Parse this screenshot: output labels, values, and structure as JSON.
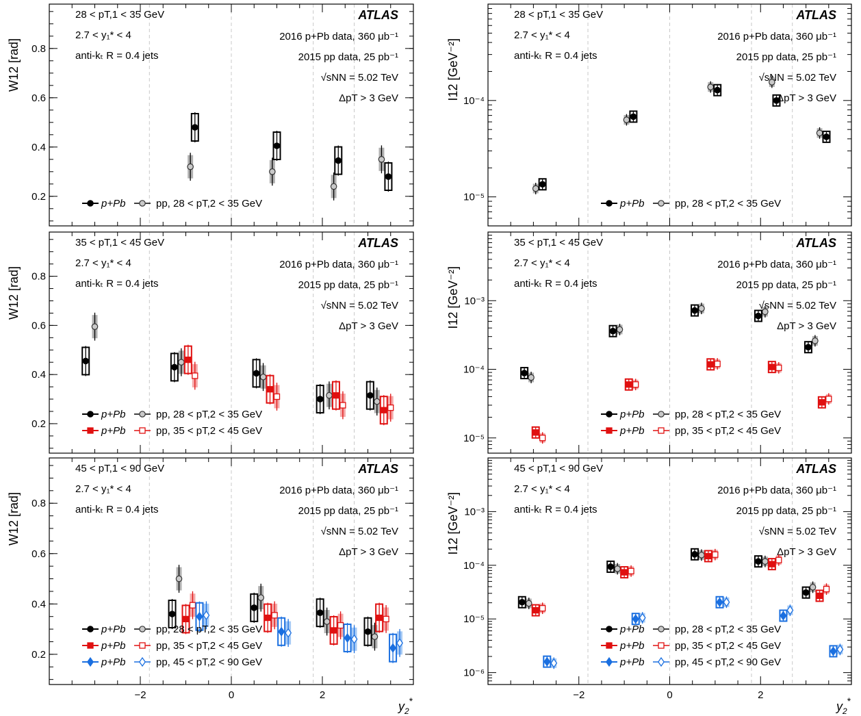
{
  "figure": {
    "xlabel_main": "y",
    "xlabel_sub": "2",
    "xlabel_sup": "*",
    "xticks": [
      -2,
      0,
      2
    ],
    "vlines": [
      -1.8,
      0,
      1.8,
      2.7
    ],
    "xlim": [
      -4,
      4
    ]
  },
  "labels": {
    "atlas": "ATLAS",
    "y1_range": "2.7 < y₁* < 4",
    "jets": "anti-kₜ R = 0.4 jets",
    "pPb": "2016 p+Pb data, 360 μb⁻¹",
    "pp": "2015 pp data, 25 pb⁻¹",
    "sqrt_s": "√sNN = 5.02 TeV",
    "dpt": "ΔpT > 3 GeV"
  },
  "legend_labels": {
    "pPb": "p+Pb",
    "pp": "pp",
    "bins": [
      "28 < pT,2 < 35 GeV",
      "35 < pT,2 < 45 GeV",
      "45 < pT,2 < 90 GeV"
    ]
  },
  "chart_data": [
    {
      "type": "scatter",
      "row": 0,
      "col": 0,
      "metric": "W",
      "ylabel": "W12 [rad]",
      "ylim": [
        0.08,
        0.98
      ],
      "yticks": [
        0.2,
        0.4,
        0.6,
        0.8
      ],
      "pt1_label": "28 < pT,1 < 35 GeV",
      "series": [
        {
          "color": "#000000",
          "marker": "circle",
          "pt2_bin": 0,
          "pPb": [
            [
              -0.8,
              0.48
            ],
            [
              1.0,
              0.405
            ],
            [
              2.35,
              0.345
            ],
            [
              3.45,
              0.28
            ]
          ],
          "pp": [
            [
              -0.9,
              0.32
            ],
            [
              0.9,
              0.3
            ],
            [
              2.25,
              0.24
            ],
            [
              3.3,
              0.35
            ]
          ]
        }
      ]
    },
    {
      "type": "scatter",
      "row": 1,
      "col": 0,
      "metric": "W",
      "ylabel": "W12 [rad]",
      "ylim": [
        0.08,
        0.98
      ],
      "yticks": [
        0.2,
        0.4,
        0.6,
        0.8
      ],
      "pt1_label": "35 < pT,1 < 45 GeV",
      "series": [
        {
          "color": "#000000",
          "marker": "circle",
          "pt2_bin": 0,
          "pPb": [
            [
              -3.2,
              0.455
            ],
            [
              -1.25,
              0.43
            ],
            [
              0.55,
              0.405
            ],
            [
              1.95,
              0.3
            ],
            [
              3.05,
              0.315
            ]
          ],
          "pp": [
            [
              -3.0,
              0.595
            ],
            [
              -1.1,
              0.45
            ],
            [
              0.7,
              0.39
            ],
            [
              2.15,
              0.315
            ],
            [
              3.2,
              0.29
            ]
          ]
        },
        {
          "color": "#e01010",
          "marker": "square",
          "pt2_bin": 1,
          "pPb": [
            [
              -0.95,
              0.46
            ],
            [
              0.85,
              0.34
            ],
            [
              2.3,
              0.315
            ],
            [
              3.35,
              0.255
            ]
          ],
          "pp": [
            [
              -0.8,
              0.395
            ],
            [
              1.0,
              0.31
            ],
            [
              2.45,
              0.275
            ],
            [
              3.5,
              0.265
            ]
          ]
        }
      ]
    },
    {
      "type": "scatter",
      "row": 2,
      "col": 0,
      "metric": "W",
      "ylabel": "W12 [rad]",
      "ylim": [
        0.08,
        0.98
      ],
      "yticks": [
        0.2,
        0.4,
        0.6,
        0.8
      ],
      "pt1_label": "45 < pT,1 < 90 GeV",
      "series": [
        {
          "color": "#000000",
          "marker": "circle",
          "pt2_bin": 0,
          "pPb": [
            [
              -1.3,
              0.36
            ],
            [
              0.5,
              0.385
            ],
            [
              1.95,
              0.365
            ],
            [
              3.0,
              0.29
            ]
          ],
          "pp": [
            [
              -1.15,
              0.5
            ],
            [
              0.65,
              0.425
            ],
            [
              2.1,
              0.33
            ],
            [
              3.15,
              0.27
            ]
          ]
        },
        {
          "color": "#e01010",
          "marker": "square",
          "pt2_bin": 1,
          "pPb": [
            [
              -1.0,
              0.34
            ],
            [
              0.8,
              0.345
            ],
            [
              2.25,
              0.295
            ],
            [
              3.25,
              0.345
            ]
          ],
          "pp": [
            [
              -0.85,
              0.395
            ],
            [
              0.95,
              0.355
            ],
            [
              2.4,
              0.315
            ],
            [
              3.4,
              0.34
            ]
          ]
        },
        {
          "color": "#1a6fe0",
          "marker": "diamond",
          "pt2_bin": 2,
          "pPb": [
            [
              -0.7,
              0.35
            ],
            [
              1.1,
              0.29
            ],
            [
              2.55,
              0.265
            ],
            [
              3.55,
              0.225
            ]
          ],
          "pp": [
            [
              -0.55,
              0.355
            ],
            [
              1.25,
              0.285
            ],
            [
              2.7,
              0.26
            ],
            [
              3.7,
              0.245
            ]
          ]
        }
      ]
    },
    {
      "type": "scatter",
      "row": 0,
      "col": 1,
      "metric": "I",
      "log": true,
      "ylabel": "I12 [GeV⁻²]",
      "ylim": [
        5e-06,
        0.001
      ],
      "yticks": [
        1e-05,
        0.0001
      ],
      "ytick_labels": [
        "10⁻⁵",
        "10⁻⁴"
      ],
      "pt1_label": "28 < pT,1 < 35 GeV",
      "series": [
        {
          "color": "#000000",
          "marker": "circle",
          "pt2_bin": 0,
          "pPb": [
            [
              -2.8,
              1.35e-05
            ],
            [
              -0.8,
              6.8e-05
            ],
            [
              1.05,
              0.000128
            ],
            [
              2.35,
              0.0001
            ],
            [
              3.45,
              4.2e-05
            ]
          ],
          "pp": [
            [
              -2.95,
              1.22e-05
            ],
            [
              -0.95,
              6.3e-05
            ],
            [
              0.9,
              0.000138
            ],
            [
              2.25,
              0.000155
            ],
            [
              3.3,
              4.6e-05
            ]
          ]
        }
      ]
    },
    {
      "type": "scatter",
      "row": 1,
      "col": 1,
      "metric": "I",
      "log": true,
      "ylabel": "I12 [GeV⁻²]",
      "ylim": [
        6e-06,
        0.01
      ],
      "yticks": [
        1e-05,
        0.0001,
        0.001
      ],
      "ytick_labels": [
        "10⁻⁵",
        "10⁻⁴",
        "10⁻³"
      ],
      "pt1_label": "35 < pT,1 < 45 GeV",
      "series": [
        {
          "color": "#000000",
          "marker": "circle",
          "pt2_bin": 0,
          "pPb": [
            [
              -3.2,
              8.8e-05
            ],
            [
              -1.25,
              0.00036
            ],
            [
              0.55,
              0.00072
            ],
            [
              1.95,
              0.0006
            ],
            [
              3.05,
              0.00021
            ]
          ],
          "pp": [
            [
              -3.05,
              7.6e-05
            ],
            [
              -1.1,
              0.00038
            ],
            [
              0.7,
              0.00077
            ],
            [
              2.1,
              0.00069
            ],
            [
              3.2,
              0.00026
            ]
          ]
        },
        {
          "color": "#e01010",
          "marker": "square",
          "pt2_bin": 1,
          "pPb": [
            [
              -2.95,
              1.2e-05
            ],
            [
              -0.9,
              6e-05
            ],
            [
              0.9,
              0.000118
            ],
            [
              2.25,
              0.000108
            ],
            [
              3.35,
              3.3e-05
            ]
          ],
          "pp": [
            [
              -2.8,
              1e-05
            ],
            [
              -0.75,
              6e-05
            ],
            [
              1.05,
              0.00012
            ],
            [
              2.4,
              0.000105
            ],
            [
              3.5,
              3.7e-05
            ]
          ]
        }
      ]
    },
    {
      "type": "scatter",
      "row": 2,
      "col": 1,
      "metric": "I",
      "log": true,
      "ylabel": "I12 [GeV⁻²]",
      "ylim": [
        6e-07,
        0.01
      ],
      "yticks": [
        1e-06,
        1e-05,
        0.0001,
        0.001
      ],
      "ytick_labels": [
        "10⁻⁶",
        "10⁻⁵",
        "10⁻⁴",
        "10⁻³"
      ],
      "pt1_label": "45 < pT,1 < 90 GeV",
      "series": [
        {
          "color": "#000000",
          "marker": "circle",
          "pt2_bin": 0,
          "pPb": [
            [
              -3.25,
              2.05e-05
            ],
            [
              -1.3,
              9.4e-05
            ],
            [
              0.55,
              0.00016
            ],
            [
              1.95,
              0.000118
            ],
            [
              3.0,
              3.1e-05
            ]
          ],
          "pp": [
            [
              -3.1,
              1.95e-05
            ],
            [
              -1.15,
              8.6e-05
            ],
            [
              0.7,
              0.000155
            ],
            [
              2.1,
              0.000118
            ],
            [
              3.15,
              3.9e-05
            ]
          ]
        },
        {
          "color": "#e01010",
          "marker": "square",
          "pt2_bin": 1,
          "pPb": [
            [
              -2.95,
              1.45e-05
            ],
            [
              -1.0,
              7.4e-05
            ],
            [
              0.85,
              0.000148
            ],
            [
              2.25,
              0.000105
            ],
            [
              3.3,
              2.7e-05
            ]
          ],
          "pp": [
            [
              -2.8,
              1.58e-05
            ],
            [
              -0.85,
              7.8e-05
            ],
            [
              1.0,
              0.000158
            ],
            [
              2.4,
              0.000125
            ],
            [
              3.45,
              3.6e-05
            ]
          ]
        },
        {
          "color": "#1a6fe0",
          "marker": "diamond",
          "pt2_bin": 2,
          "pPb": [
            [
              -2.7,
              1.6e-06
            ],
            [
              -0.75,
              1e-05
            ],
            [
              1.1,
              2.05e-05
            ],
            [
              2.5,
              1.15e-05
            ],
            [
              3.6,
              2.5e-06
            ]
          ],
          "pp": [
            [
              -2.55,
              1.5e-06
            ],
            [
              -0.6,
              1.05e-05
            ],
            [
              1.25,
              2.05e-05
            ],
            [
              2.65,
              1.45e-05
            ],
            [
              3.75,
              2.7e-06
            ]
          ]
        }
      ]
    }
  ]
}
